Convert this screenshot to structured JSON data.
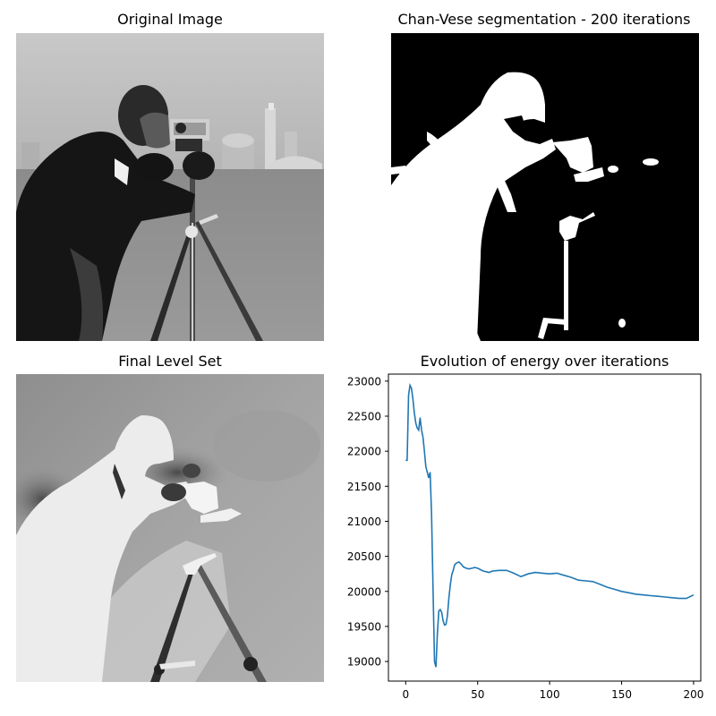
{
  "panels": {
    "original": {
      "title": "Original Image"
    },
    "segmentation": {
      "title": "Chan-Vese segmentation - 200 iterations"
    },
    "level_set": {
      "title": "Final Level Set"
    },
    "energy": {
      "title": "Evolution of energy over iterations"
    }
  },
  "colors": {
    "line": "#1f77b4",
    "axis": "#000000",
    "segmentation_bg": "#000000",
    "segmentation_fg": "#ffffff"
  },
  "chart_data": [
    {
      "type": "line",
      "title": "Evolution of energy over iterations",
      "xlabel": "",
      "ylabel": "",
      "xlim": [
        -12,
        205
      ],
      "ylim": [
        18720,
        23100
      ],
      "xticks": [
        0,
        50,
        100,
        150,
        200
      ],
      "yticks": [
        19000,
        19500,
        20000,
        20500,
        21000,
        21500,
        22000,
        22500,
        23000
      ],
      "grid": false,
      "series": [
        {
          "x": [
            0,
            1,
            2,
            3,
            4,
            5,
            6,
            7,
            8,
            9,
            10,
            11,
            12,
            13,
            14,
            15,
            16,
            17,
            18,
            19,
            20,
            21,
            22,
            23,
            24,
            25,
            26,
            27,
            28,
            29,
            30,
            31,
            32,
            33,
            34,
            35,
            36,
            37,
            38,
            39,
            40,
            42,
            44,
            46,
            48,
            50,
            52,
            54,
            56,
            58,
            60,
            65,
            70,
            75,
            80,
            85,
            90,
            95,
            100,
            105,
            110,
            115,
            120,
            125,
            130,
            135,
            140,
            145,
            150,
            155,
            160,
            165,
            170,
            175,
            180,
            185,
            190,
            195,
            200
          ],
          "y": [
            21870,
            21870,
            22800,
            22940,
            22900,
            22750,
            22550,
            22400,
            22330,
            22300,
            22480,
            22300,
            22200,
            22000,
            21780,
            21700,
            21620,
            21700,
            21100,
            20000,
            19000,
            18920,
            19400,
            19720,
            19740,
            19700,
            19580,
            19520,
            19530,
            19650,
            19900,
            20100,
            20240,
            20300,
            20380,
            20400,
            20410,
            20420,
            20400,
            20380,
            20350,
            20330,
            20320,
            20330,
            20340,
            20330,
            20310,
            20290,
            20280,
            20270,
            20290,
            20300,
            20300,
            20260,
            20210,
            20250,
            20270,
            20260,
            20250,
            20260,
            20230,
            20200,
            20160,
            20150,
            20140,
            20100,
            20060,
            20030,
            20000,
            19980,
            19960,
            19950,
            19940,
            19930,
            19920,
            19910,
            19900,
            19900,
            19950
          ]
        }
      ]
    }
  ]
}
